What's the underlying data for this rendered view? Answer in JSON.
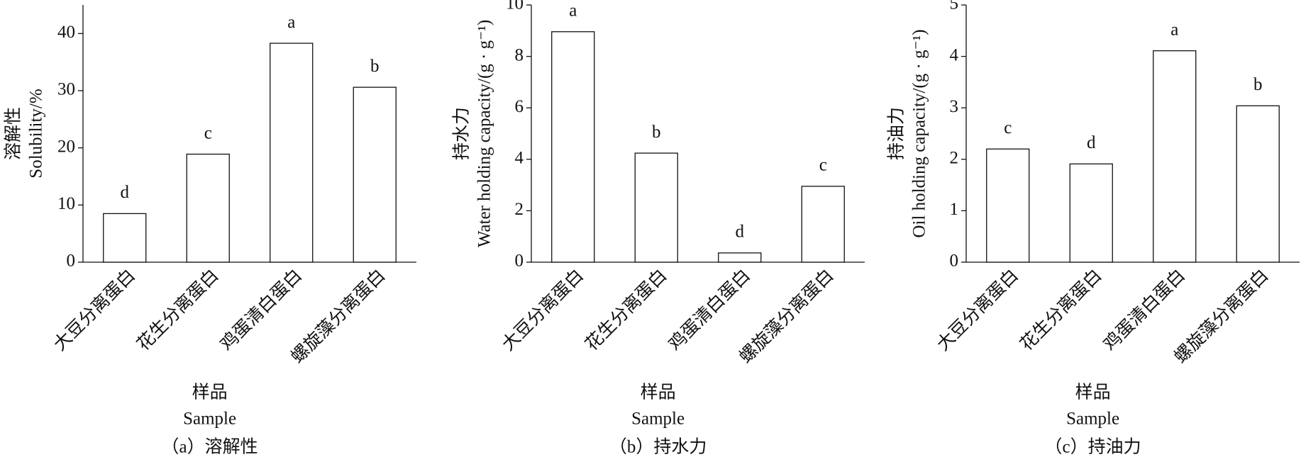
{
  "chart_data": [
    {
      "type": "bar",
      "y_label": [
        "溶解性",
        "Solubility/%"
      ],
      "x_label": [
        "样品",
        "Sample"
      ],
      "caption": "（a）溶解性",
      "categories": [
        "大豆分离蛋白",
        "花生分离蛋白",
        "鸡蛋清白蛋白",
        "螺旋藻分离蛋白"
      ],
      "values": [
        8.5,
        18.9,
        38.3,
        30.6
      ],
      "annotations": [
        "d",
        "c",
        "a",
        "b"
      ],
      "color": "#ffffff",
      "ylim": [
        0,
        45
      ],
      "yticks": [
        0,
        10,
        20,
        30,
        40
      ]
    },
    {
      "type": "bar",
      "y_label": [
        "持水力",
        "Water holding capacity/(g · g⁻¹)"
      ],
      "x_label": [
        "样品",
        "Sample"
      ],
      "caption": "（b）持水力",
      "categories": [
        "大豆分离蛋白",
        "花生分离蛋白",
        "鸡蛋清白蛋白",
        "螺旋藻分离蛋白"
      ],
      "values": [
        8.96,
        4.24,
        0.36,
        2.95
      ],
      "annotations": [
        "a",
        "b",
        "d",
        "c"
      ],
      "color": "#ffffff",
      "ylim": [
        0,
        10
      ],
      "yticks": [
        0,
        2,
        4,
        6,
        8,
        10
      ]
    },
    {
      "type": "bar",
      "y_label": [
        "持油力",
        "Oil holding capacity/(g · g⁻¹)"
      ],
      "x_label": [
        "样品",
        "Sample"
      ],
      "caption": "（c）持油力",
      "categories": [
        "大豆分离蛋白",
        "花生分离蛋白",
        "鸡蛋清白蛋白",
        "螺旋藻分离蛋白"
      ],
      "values": [
        2.2,
        1.91,
        4.11,
        3.04
      ],
      "annotations": [
        "c",
        "d",
        "a",
        "b"
      ],
      "color": "#ffffff",
      "ylim": [
        0,
        5
      ],
      "yticks": [
        0,
        1,
        2,
        3,
        4,
        5
      ]
    }
  ]
}
